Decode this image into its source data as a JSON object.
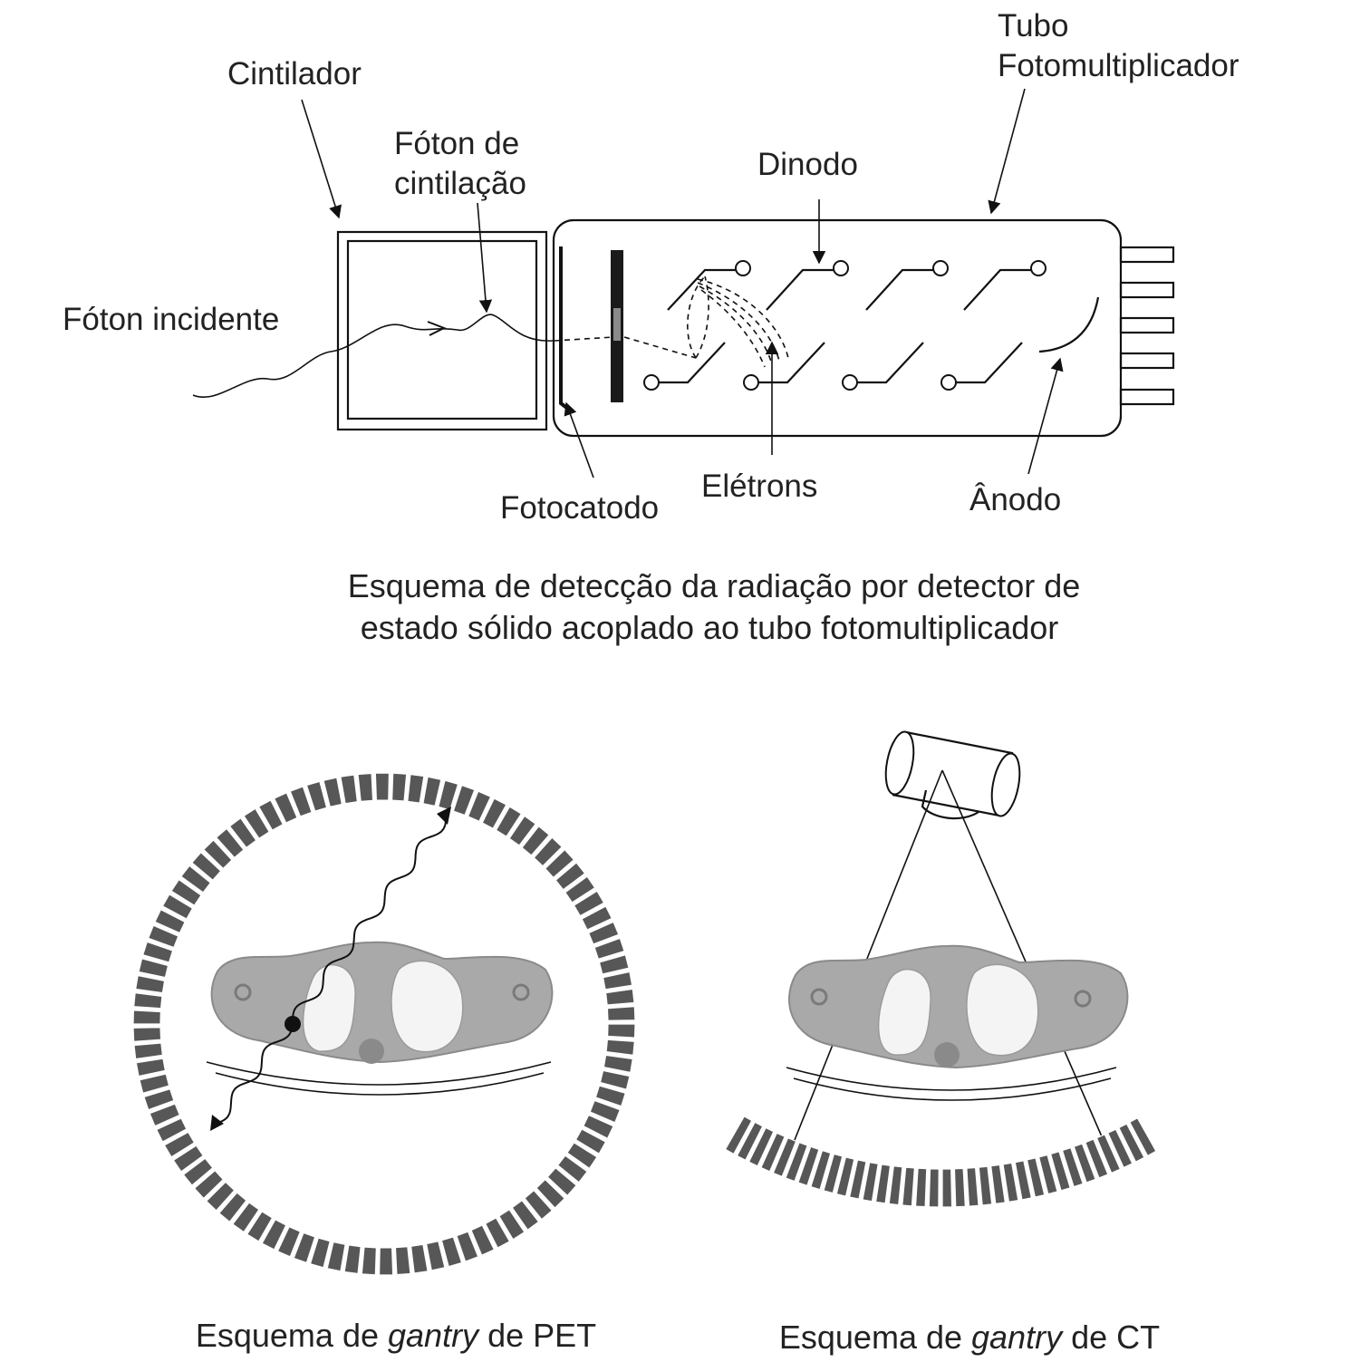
{
  "labels": {
    "cintilador": "Cintilador",
    "foton_cintilacao": [
      "Fóton de",
      "cintilação"
    ],
    "tubo_fotomultiplicador": [
      "Tubo",
      "Fotomultiplicador"
    ],
    "dinodo": "Dinodo",
    "foton_incidente": "Fóton incidente",
    "fotocatodo": "Fotocatodo",
    "eletrons": "Elétrons",
    "anodo": "Ânodo"
  },
  "captions": {
    "top": [
      "Esquema de detecção da radiação por detector de",
      "estado sólido acoplado ao tubo fotomultiplicador"
    ],
    "pet": {
      "pre": "Esquema de ",
      "em": "gantry",
      "post": " de PET"
    },
    "ct": {
      "pre": "Esquema de ",
      "em": "gantry",
      "post": " de CT"
    }
  },
  "colors": {
    "ink": "#111111",
    "text": "#222222",
    "detector": "#575757",
    "body": "#a9a9a9",
    "lung": "#f4f4f4"
  }
}
